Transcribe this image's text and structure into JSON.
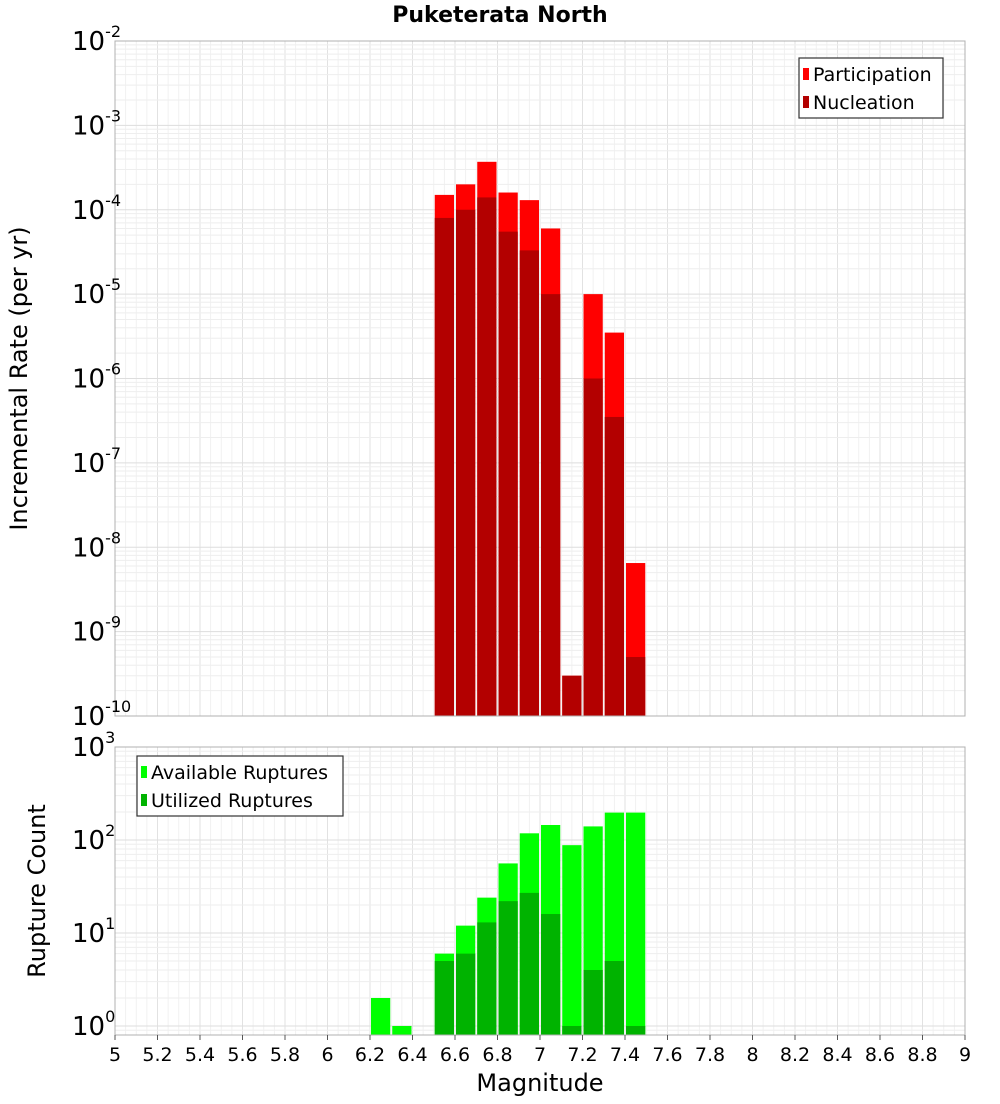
{
  "title": "Puketerata North",
  "chart_data": [
    {
      "type": "bar",
      "title": "Puketerata North",
      "xlabel": "Magnitude",
      "ylabel": "Incremental Rate (per yr)",
      "yscale": "log",
      "ylim": [
        1e-10,
        0.01
      ],
      "xlim": [
        5,
        9
      ],
      "grid": true,
      "legend_position": "top-right",
      "y_tick_exponents": [
        "-10",
        "-9",
        "-8",
        "-7",
        "-6",
        "-5",
        "-4",
        "-3",
        "-2"
      ],
      "bin_width": 0.1,
      "series": [
        {
          "name": "Participation",
          "color": "#ff0000",
          "x": [
            6.55,
            6.65,
            6.75,
            6.85,
            6.95,
            7.05,
            7.15,
            7.25,
            7.35,
            7.45
          ],
          "values": [
            0.00015,
            0.0002,
            0.00037,
            0.00016,
            0.00013,
            6e-05,
            3e-10,
            1e-05,
            3.5e-06,
            6.5e-09
          ]
        },
        {
          "name": "Nucleation",
          "color": "#b30000",
          "x": [
            6.55,
            6.65,
            6.75,
            6.85,
            6.95,
            7.05,
            7.15,
            7.25,
            7.35,
            7.45
          ],
          "values": [
            8e-05,
            0.0001,
            0.00014,
            5.5e-05,
            3.3e-05,
            1e-05,
            3e-10,
            1e-06,
            3.5e-07,
            5e-10
          ]
        }
      ]
    },
    {
      "type": "bar",
      "xlabel": "Magnitude",
      "ylabel": "Rupture Count",
      "yscale": "log",
      "ylim": [
        0.8,
        1000
      ],
      "xlim": [
        5,
        9
      ],
      "grid": true,
      "legend_position": "top-left",
      "y_tick_exponents": [
        "0",
        "1",
        "2",
        "3"
      ],
      "x_ticks": [
        "5",
        "5.2",
        "5.4",
        "5.6",
        "5.8",
        "6",
        "6.2",
        "6.4",
        "6.6",
        "6.8",
        "7",
        "7.2",
        "7.4",
        "7.6",
        "7.8",
        "8",
        "8.2",
        "8.4",
        "8.6",
        "8.8",
        "9"
      ],
      "bin_width": 0.1,
      "series": [
        {
          "name": "Available Ruptures",
          "color": "#00ff00",
          "x": [
            6.25,
            6.35,
            6.55,
            6.65,
            6.75,
            6.85,
            6.95,
            7.05,
            7.15,
            7.25,
            7.35,
            7.45
          ],
          "values": [
            2,
            1,
            6,
            12,
            24,
            56,
            118,
            145,
            88,
            140,
            197,
            197
          ]
        },
        {
          "name": "Utilized Ruptures",
          "color": "#00b300",
          "x": [
            6.55,
            6.65,
            6.75,
            6.85,
            6.95,
            7.05,
            7.15,
            7.25,
            7.35,
            7.45
          ],
          "values": [
            5,
            6,
            13,
            22,
            27,
            16,
            1,
            4,
            5,
            1
          ]
        }
      ]
    }
  ]
}
